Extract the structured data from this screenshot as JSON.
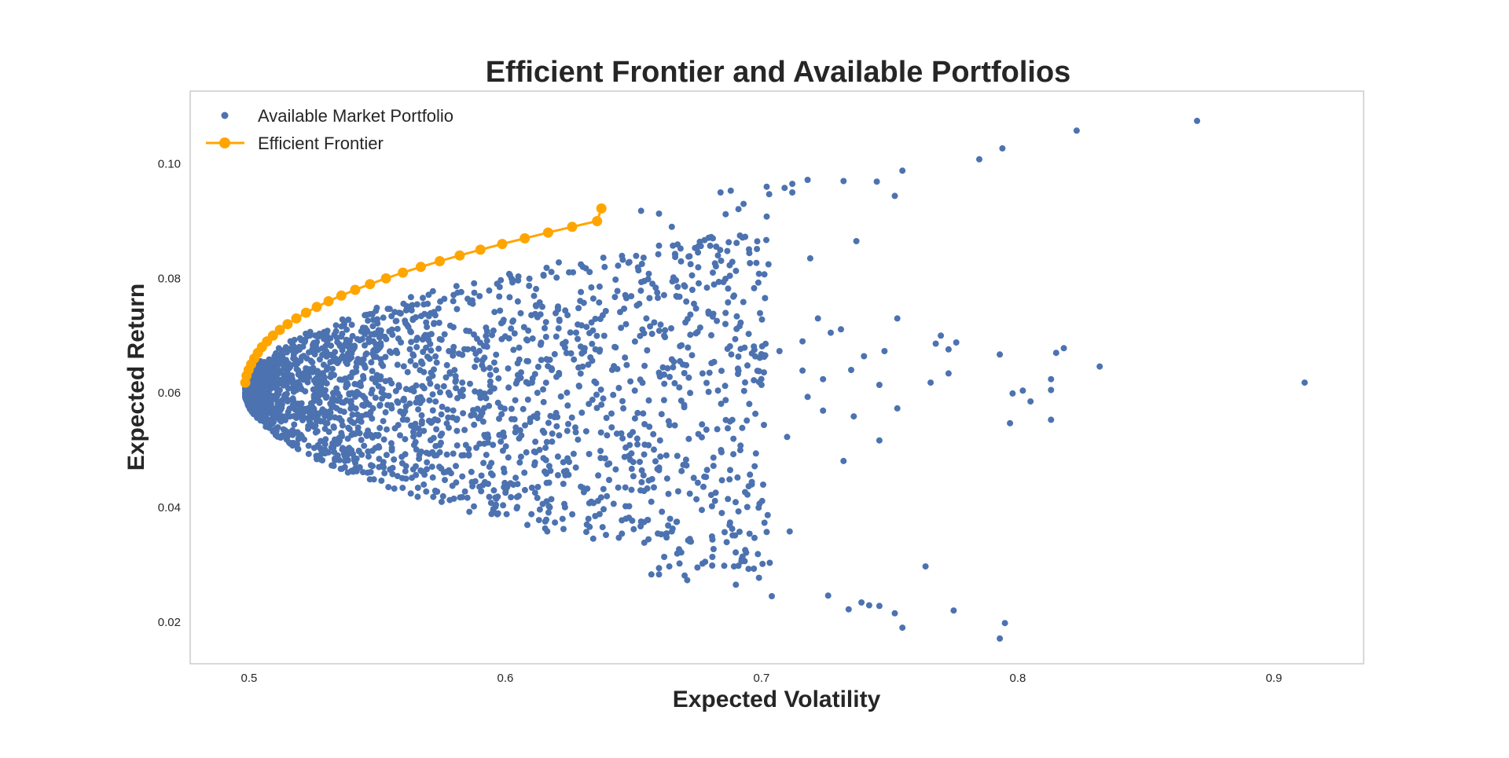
{
  "chart_data": {
    "type": "scatter",
    "title": "Efficient Frontier and Available Portfolios",
    "xlabel": "Expected Volatility",
    "ylabel": "Expected Return",
    "xlim": [
      0.477,
      0.935
    ],
    "ylim": [
      0.0127,
      0.1127
    ],
    "x_ticks": [
      0.5,
      0.6,
      0.7,
      0.8,
      0.9
    ],
    "x_tick_labels": [
      "0.5",
      "0.6",
      "0.7",
      "0.8",
      "0.9"
    ],
    "y_ticks": [
      0.02,
      0.04,
      0.06,
      0.08,
      0.1
    ],
    "y_tick_labels": [
      "0.02",
      "0.04",
      "0.06",
      "0.08",
      "0.10"
    ],
    "grid": false,
    "legend_position": "top-left",
    "series": [
      {
        "name": "Available Market Portfolio",
        "marker": "dot",
        "color": "#4c72b0",
        "cloud_note": "dense cloud of ~2500 simulated portfolios; outliers listed below",
        "points": [
          [
            0.87,
            0.1075
          ],
          [
            0.823,
            0.1058
          ],
          [
            0.794,
            0.1027
          ],
          [
            0.785,
            0.1008
          ],
          [
            0.912,
            0.0618
          ],
          [
            0.832,
            0.0646
          ],
          [
            0.818,
            0.0678
          ],
          [
            0.815,
            0.067
          ],
          [
            0.813,
            0.0624
          ],
          [
            0.813,
            0.0605
          ],
          [
            0.813,
            0.0553
          ],
          [
            0.805,
            0.0585
          ],
          [
            0.802,
            0.0604
          ],
          [
            0.798,
            0.0599
          ],
          [
            0.797,
            0.0547
          ],
          [
            0.793,
            0.0667
          ],
          [
            0.795,
            0.0198
          ],
          [
            0.793,
            0.0171
          ],
          [
            0.775,
            0.022
          ],
          [
            0.764,
            0.0297
          ],
          [
            0.776,
            0.0688
          ],
          [
            0.773,
            0.0676
          ],
          [
            0.77,
            0.07
          ],
          [
            0.768,
            0.0686
          ],
          [
            0.773,
            0.0634
          ],
          [
            0.766,
            0.0618
          ],
          [
            0.753,
            0.073
          ],
          [
            0.753,
            0.0573
          ],
          [
            0.746,
            0.0517
          ],
          [
            0.746,
            0.0614
          ],
          [
            0.748,
            0.0673
          ],
          [
            0.74,
            0.0664
          ],
          [
            0.735,
            0.064
          ],
          [
            0.736,
            0.0559
          ],
          [
            0.732,
            0.0481
          ],
          [
            0.755,
            0.019
          ],
          [
            0.752,
            0.0215
          ],
          [
            0.746,
            0.0228
          ],
          [
            0.742,
            0.0229
          ],
          [
            0.739,
            0.0234
          ],
          [
            0.734,
            0.0222
          ],
          [
            0.726,
            0.0246
          ],
          [
            0.704,
            0.0245
          ],
          [
            0.755,
            0.0988
          ],
          [
            0.752,
            0.0944
          ],
          [
            0.745,
            0.0969
          ],
          [
            0.732,
            0.097
          ],
          [
            0.737,
            0.0865
          ],
          [
            0.719,
            0.0835
          ],
          [
            0.718,
            0.0972
          ],
          [
            0.712,
            0.0965
          ],
          [
            0.709,
            0.0958
          ],
          [
            0.702,
            0.096
          ],
          [
            0.712,
            0.095
          ],
          [
            0.703,
            0.0947
          ],
          [
            0.702,
            0.0908
          ],
          [
            0.722,
            0.073
          ],
          [
            0.727,
            0.0705
          ],
          [
            0.731,
            0.0711
          ],
          [
            0.716,
            0.069
          ],
          [
            0.707,
            0.0673
          ],
          [
            0.724,
            0.0624
          ],
          [
            0.718,
            0.0593
          ],
          [
            0.724,
            0.0569
          ],
          [
            0.71,
            0.0523
          ],
          [
            0.716,
            0.0639
          ],
          [
            0.711,
            0.0358
          ],
          [
            0.702,
            0.0357
          ],
          [
            0.699,
            0.0277
          ],
          [
            0.697,
            0.0293
          ],
          [
            0.691,
            0.0298
          ],
          [
            0.694,
            0.0321
          ],
          [
            0.69,
            0.0265
          ],
          [
            0.689,
            0.0493
          ],
          [
            0.691,
            0.0393
          ],
          [
            0.695,
            0.0703
          ],
          [
            0.697,
            0.0681
          ],
          [
            0.701,
            0.0663
          ],
          [
            0.699,
            0.0619
          ],
          [
            0.697,
            0.0622
          ],
          [
            0.7,
            0.0614
          ],
          [
            0.699,
            0.0808
          ],
          [
            0.698,
            0.0827
          ],
          [
            0.689,
            0.0768
          ],
          [
            0.691,
            0.0921
          ],
          [
            0.693,
            0.093
          ],
          [
            0.684,
            0.095
          ],
          [
            0.688,
            0.0953
          ],
          [
            0.686,
            0.0912
          ],
          [
            0.681,
            0.087
          ],
          [
            0.683,
            0.084
          ],
          [
            0.681,
            0.081
          ],
          [
            0.678,
            0.0305
          ],
          [
            0.675,
            0.0295
          ],
          [
            0.671,
            0.0273
          ],
          [
            0.67,
            0.0281
          ],
          [
            0.664,
            0.0297
          ],
          [
            0.668,
            0.0302
          ],
          [
            0.66,
            0.0283
          ],
          [
            0.657,
            0.0283
          ],
          [
            0.66,
            0.0294
          ],
          [
            0.672,
            0.0345
          ],
          [
            0.672,
            0.0424
          ],
          [
            0.665,
            0.0358
          ],
          [
            0.66,
            0.0465
          ],
          [
            0.656,
            0.0447
          ],
          [
            0.658,
            0.0501
          ],
          [
            0.661,
            0.0563
          ],
          [
            0.662,
            0.07
          ],
          [
            0.667,
            0.0768
          ],
          [
            0.673,
            0.078
          ],
          [
            0.665,
            0.089
          ],
          [
            0.66,
            0.0913
          ],
          [
            0.653,
            0.0918
          ],
          [
            0.66,
            0.0857
          ],
          [
            0.656,
            0.0808
          ]
        ]
      },
      {
        "name": "Efficient Frontier",
        "marker": "line-dot",
        "color": "#ffa500",
        "points": [
          [
            0.4985,
            0.0618
          ],
          [
            0.499,
            0.063
          ],
          [
            0.4998,
            0.064
          ],
          [
            0.5008,
            0.065
          ],
          [
            0.502,
            0.066
          ],
          [
            0.5034,
            0.067
          ],
          [
            0.505,
            0.068
          ],
          [
            0.507,
            0.069
          ],
          [
            0.5093,
            0.07
          ],
          [
            0.512,
            0.071
          ],
          [
            0.515,
            0.072
          ],
          [
            0.5184,
            0.073
          ],
          [
            0.5222,
            0.074
          ],
          [
            0.5264,
            0.075
          ],
          [
            0.531,
            0.076
          ],
          [
            0.536,
            0.077
          ],
          [
            0.5414,
            0.078
          ],
          [
            0.5472,
            0.079
          ],
          [
            0.5534,
            0.08
          ],
          [
            0.56,
            0.081
          ],
          [
            0.567,
            0.082
          ],
          [
            0.5744,
            0.083
          ],
          [
            0.5822,
            0.084
          ],
          [
            0.5903,
            0.085
          ],
          [
            0.5988,
            0.086
          ],
          [
            0.6076,
            0.087
          ],
          [
            0.6167,
            0.088
          ],
          [
            0.6261,
            0.089
          ],
          [
            0.6358,
            0.09
          ],
          [
            0.6375,
            0.0922
          ]
        ]
      }
    ]
  }
}
